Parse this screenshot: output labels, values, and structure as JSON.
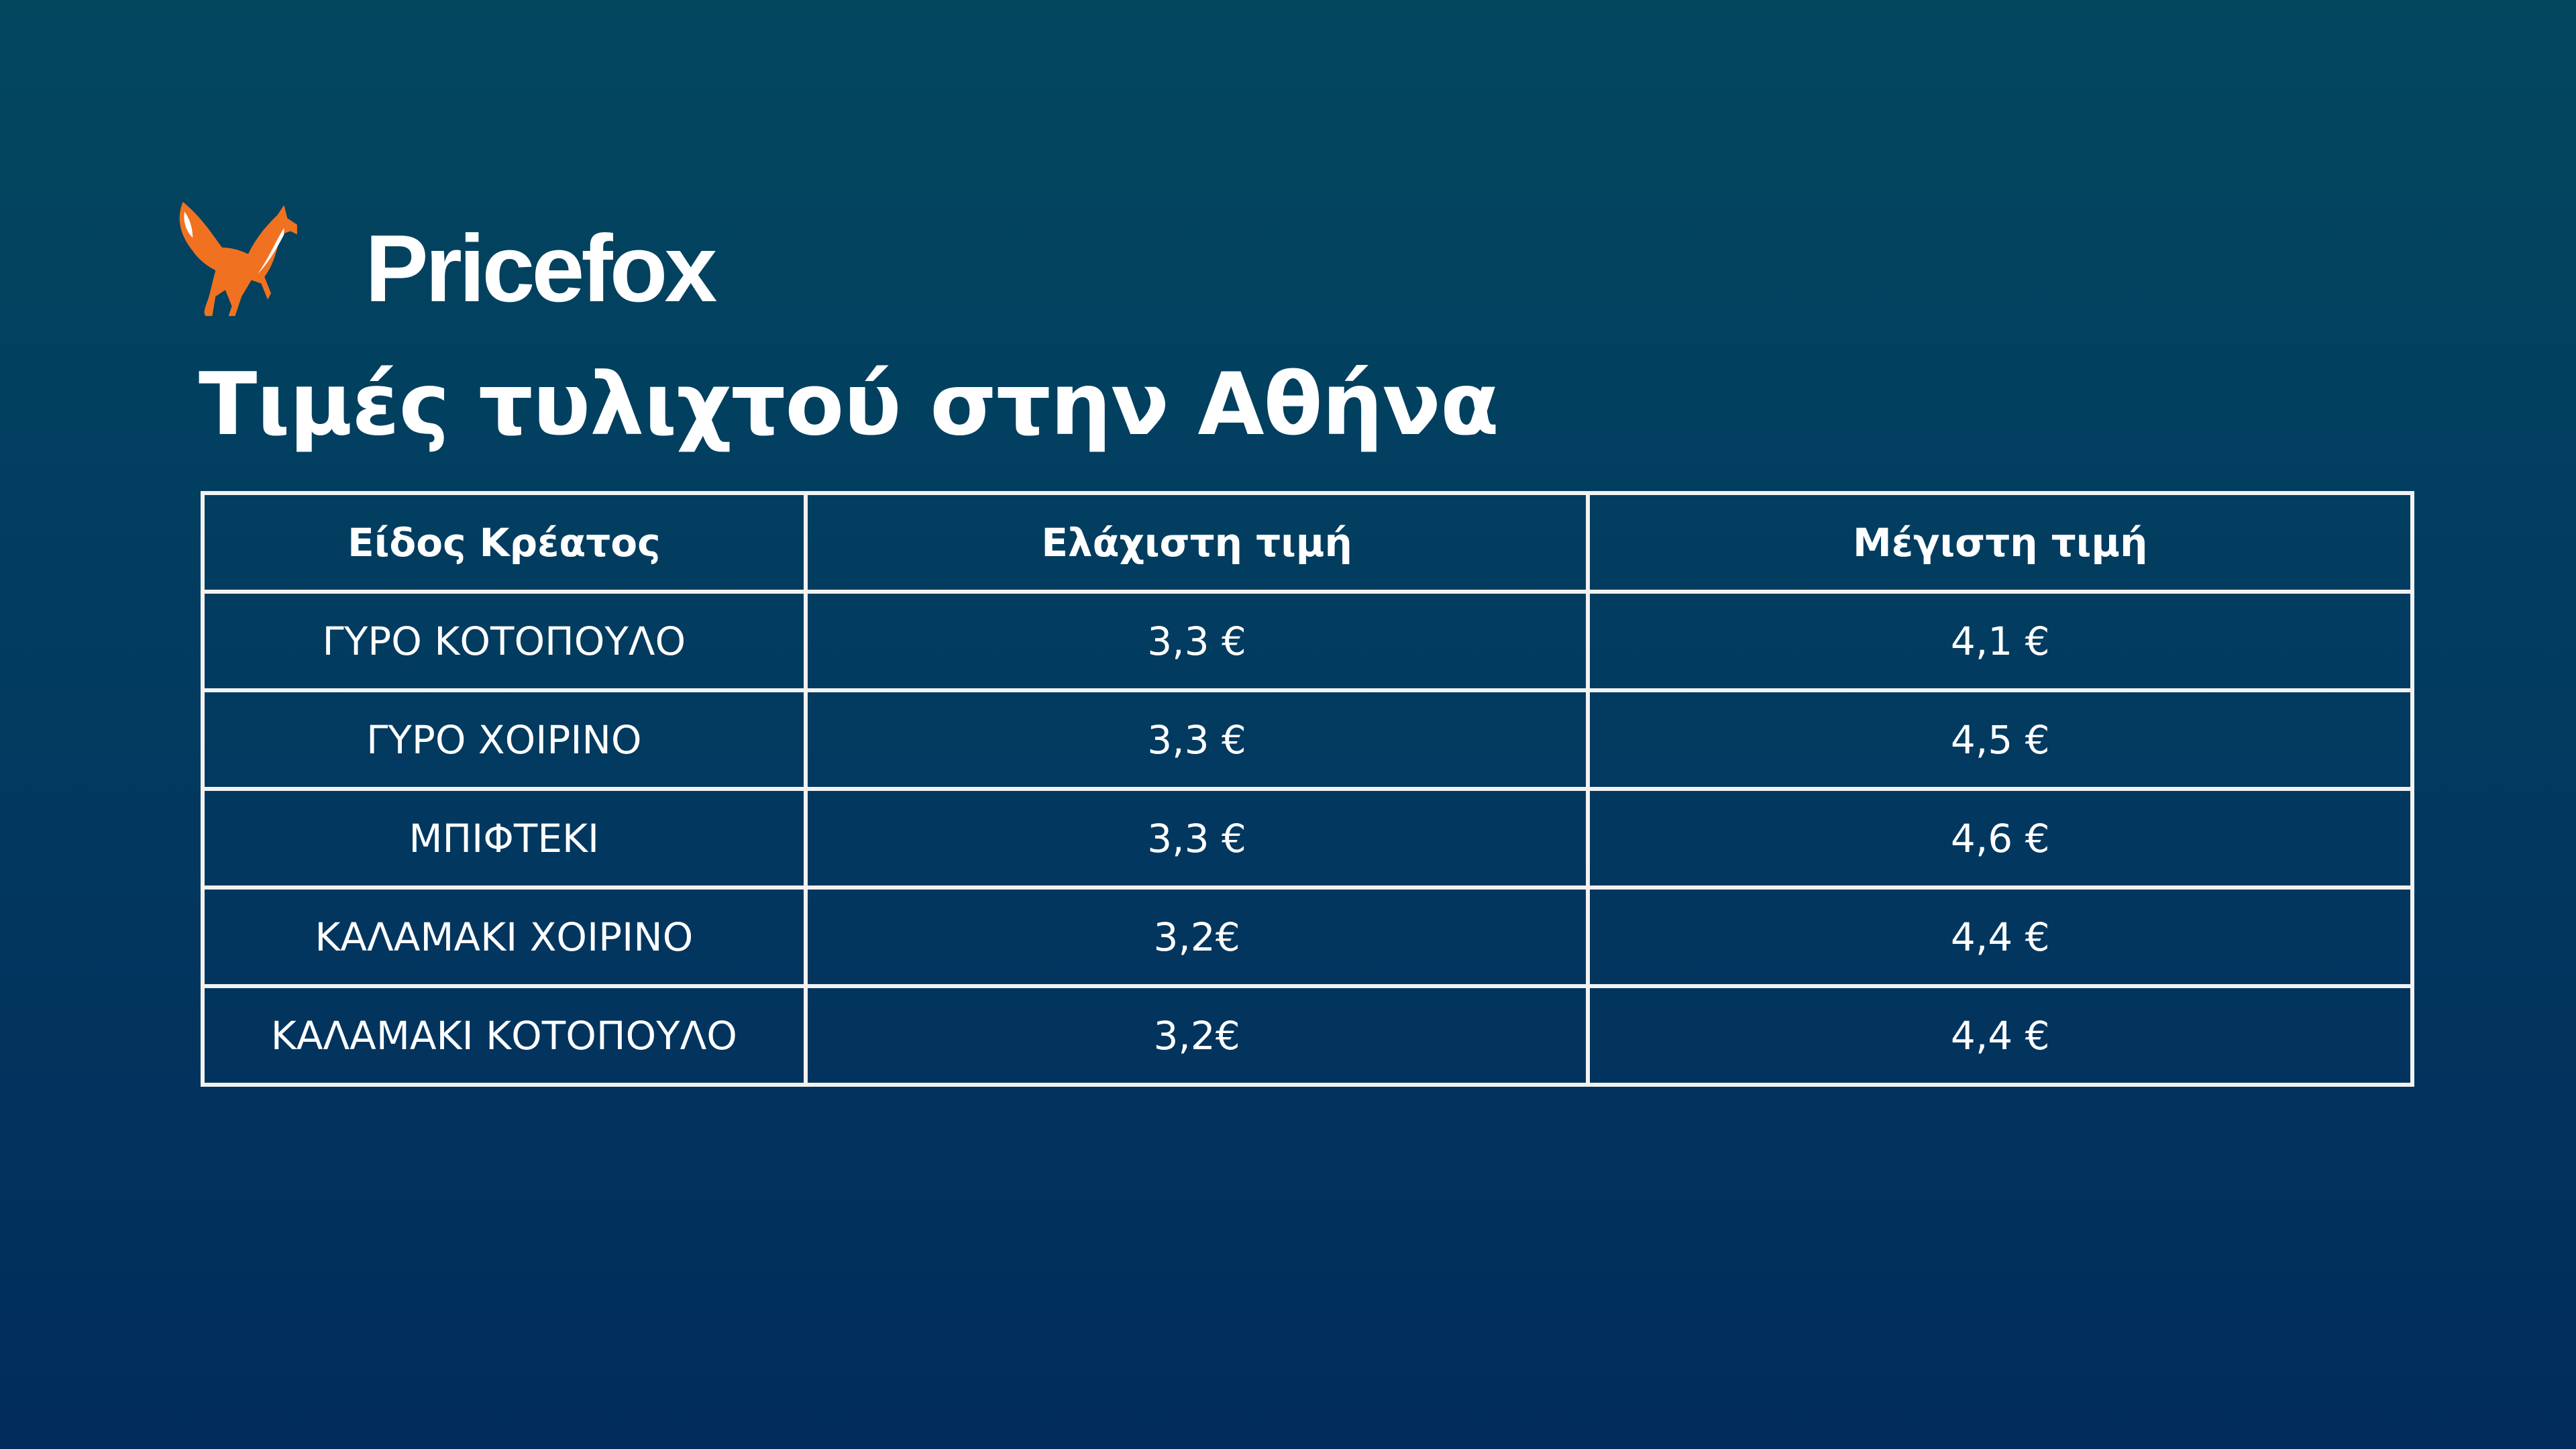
{
  "brand": {
    "name": "Pricefox",
    "logo_icon": "fox-icon",
    "fox_color": "#f07221"
  },
  "title": "Τιμές τυλιχτού στην Αθήνα",
  "table": {
    "headers": [
      "Είδος Κρέατος",
      "Ελάχιστη τιμή",
      "Μέγιστη τιμή"
    ],
    "rows": [
      [
        "ΓΥΡΟ ΚΟΤΟΠΟΥΛΟ",
        "3,3 €",
        "4,1 €"
      ],
      [
        "ΓΥΡΟ ΧΟΙΡΙΝΟ",
        "3,3 €",
        "4,5 €"
      ],
      [
        "ΜΠΙΦΤΕΚΙ",
        "3,3 €",
        "4,6 €"
      ],
      [
        "ΚΑΛΑΜΑΚΙ ΧΟΙΡΙΝΟ",
        "3,2€",
        "4,4 €"
      ],
      [
        "ΚΑΛΑΜΑΚΙ ΚΟΤΟΠΟΥΛΟ",
        "3,2€",
        "4,4 €"
      ]
    ]
  }
}
